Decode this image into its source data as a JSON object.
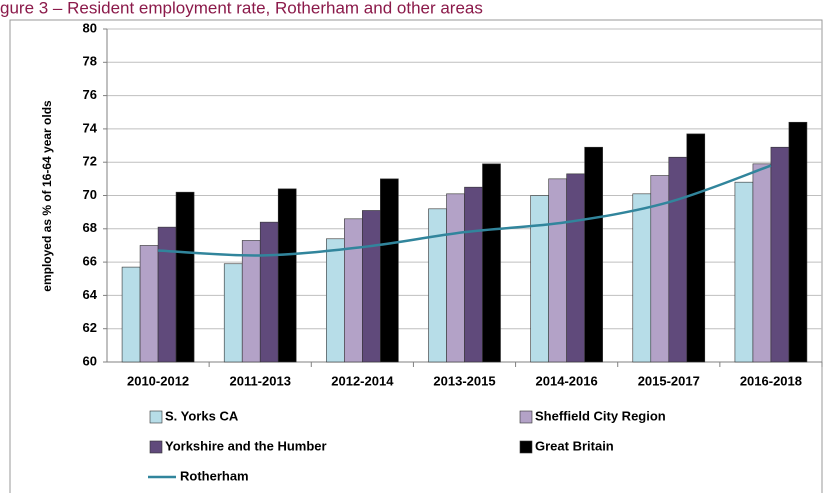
{
  "chart_data": {
    "type": "bar",
    "title": "gure 3 – Resident employment rate, Rotherham and other areas",
    "y_label": "employed as % of 16-64 year olds",
    "categories": [
      "2010-2012",
      "2011-2013",
      "2012-2014",
      "2013-2015",
      "2014-2016",
      "2015-2017",
      "2016-2018"
    ],
    "series": [
      {
        "name": "S. Yorks CA",
        "color": "#b7dde8",
        "type": "bar",
        "values": [
          65.7,
          65.9,
          67.4,
          69.2,
          70.0,
          70.1,
          70.8
        ]
      },
      {
        "name": "Sheffield City Region",
        "color": "#b3a2c7",
        "type": "bar",
        "values": [
          67.0,
          67.3,
          68.6,
          70.1,
          71.0,
          71.2,
          71.9
        ]
      },
      {
        "name": "Yorkshire and the Humber",
        "color": "#604a7b",
        "type": "bar",
        "values": [
          68.1,
          68.4,
          69.1,
          70.5,
          71.3,
          72.3,
          72.9
        ]
      },
      {
        "name": "Great Britain",
        "color": "#000000",
        "type": "bar",
        "values": [
          70.2,
          70.4,
          71.0,
          71.9,
          72.9,
          73.7,
          74.4
        ]
      },
      {
        "name": "Rotherham",
        "color": "#31859c",
        "type": "line",
        "values": [
          66.7,
          66.4,
          66.9,
          67.8,
          68.4,
          69.6,
          71.8
        ]
      }
    ],
    "ylim": [
      60,
      80
    ],
    "yticks": [
      60,
      62,
      64,
      66,
      68,
      70,
      72,
      74,
      76,
      78,
      80
    ],
    "grid": true
  }
}
